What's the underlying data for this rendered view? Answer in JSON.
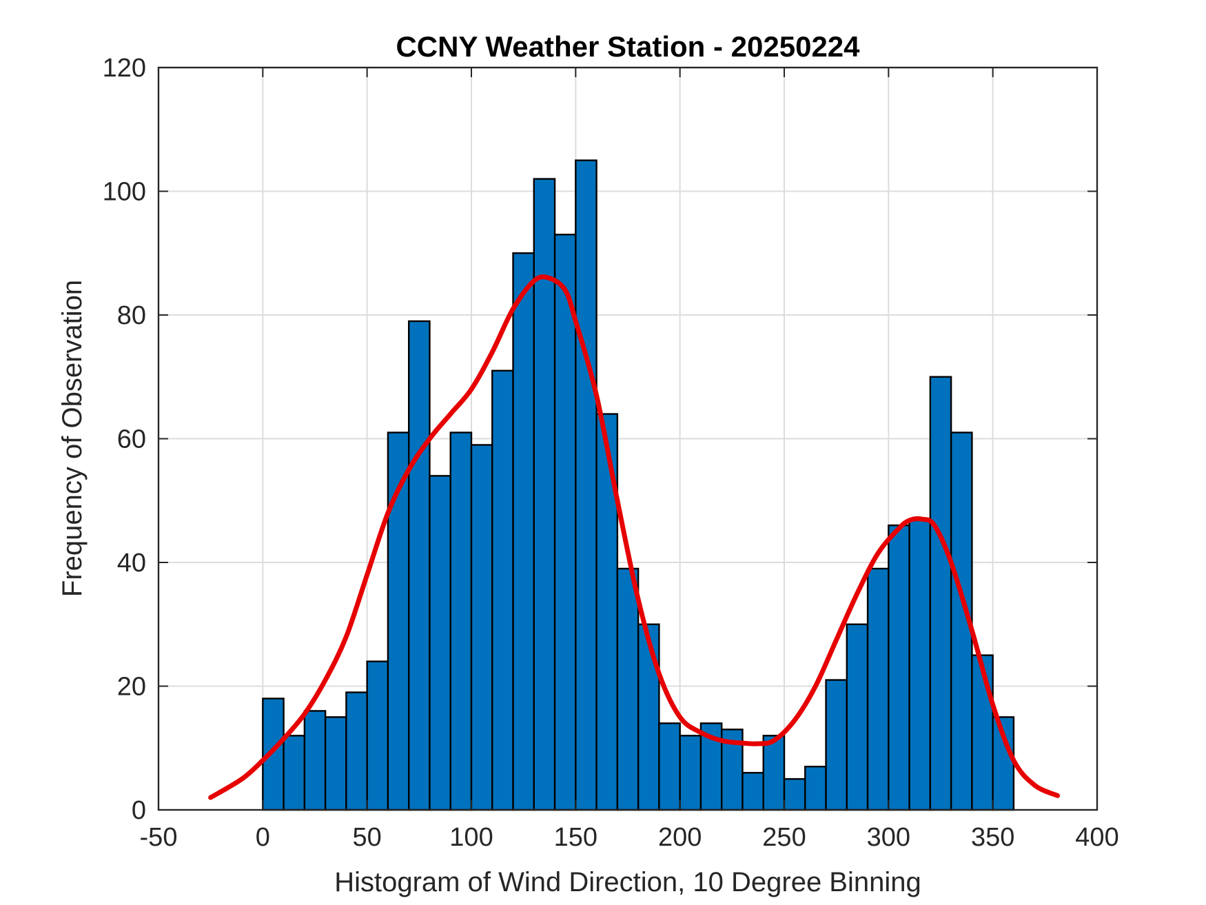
{
  "chart_data": {
    "type": "histogram",
    "title": "CCNY Weather Station - 20250224",
    "xlabel": "Histogram of Wind Direction, 10 Degree Binning",
    "ylabel": "Frequency of Observation",
    "xlim": [
      -50,
      400
    ],
    "ylim": [
      0,
      120
    ],
    "xticks": [
      "-50",
      "0",
      "50",
      "100",
      "150",
      "200",
      "250",
      "300",
      "350",
      "400"
    ],
    "yticks": [
      "0",
      "20",
      "40",
      "60",
      "80",
      "100",
      "120"
    ],
    "grid": true,
    "bin_width": 10,
    "bins": [
      {
        "start": 0,
        "value": 18
      },
      {
        "start": 10,
        "value": 12
      },
      {
        "start": 20,
        "value": 16
      },
      {
        "start": 30,
        "value": 15
      },
      {
        "start": 40,
        "value": 19
      },
      {
        "start": 50,
        "value": 24
      },
      {
        "start": 60,
        "value": 61
      },
      {
        "start": 70,
        "value": 79
      },
      {
        "start": 80,
        "value": 54
      },
      {
        "start": 90,
        "value": 61
      },
      {
        "start": 100,
        "value": 59
      },
      {
        "start": 110,
        "value": 71
      },
      {
        "start": 120,
        "value": 90
      },
      {
        "start": 130,
        "value": 102
      },
      {
        "start": 140,
        "value": 93
      },
      {
        "start": 150,
        "value": 105
      },
      {
        "start": 160,
        "value": 64
      },
      {
        "start": 170,
        "value": 39
      },
      {
        "start": 180,
        "value": 30
      },
      {
        "start": 190,
        "value": 14
      },
      {
        "start": 200,
        "value": 12
      },
      {
        "start": 210,
        "value": 14
      },
      {
        "start": 220,
        "value": 13
      },
      {
        "start": 230,
        "value": 6
      },
      {
        "start": 240,
        "value": 12
      },
      {
        "start": 250,
        "value": 5
      },
      {
        "start": 260,
        "value": 7
      },
      {
        "start": 270,
        "value": 21
      },
      {
        "start": 280,
        "value": 30
      },
      {
        "start": 290,
        "value": 39
      },
      {
        "start": 300,
        "value": 46
      },
      {
        "start": 310,
        "value": 47
      },
      {
        "start": 320,
        "value": 70
      },
      {
        "start": 330,
        "value": 61
      },
      {
        "start": 340,
        "value": 25
      },
      {
        "start": 350,
        "value": 15
      }
    ],
    "fit_curve": {
      "name": "density fit",
      "x": [
        -25,
        -10,
        0,
        10,
        20,
        30,
        40,
        50,
        60,
        70,
        80,
        90,
        100,
        110,
        120,
        130,
        137,
        145,
        150,
        160,
        170,
        180,
        190,
        200,
        210,
        220,
        230,
        237,
        245,
        255,
        265,
        275,
        285,
        295,
        305,
        310,
        316,
        322,
        330,
        340,
        350,
        360,
        370,
        381
      ],
      "y": [
        2,
        5,
        8,
        11.5,
        15.5,
        21,
        28,
        38,
        48,
        55,
        60,
        64,
        68,
        74,
        81,
        85.5,
        86,
        84,
        79,
        67,
        50,
        34,
        22,
        15,
        12.5,
        11.2,
        10.8,
        10.7,
        11.2,
        14.5,
        20,
        27.5,
        35,
        41.5,
        45.5,
        46.8,
        47,
        46,
        40,
        29,
        17,
        8,
        4,
        2.3
      ]
    },
    "colors": {
      "bar": "#0072BD",
      "bar_edge": "#000000",
      "fit": "#E60000",
      "grid": "#DCDCDC",
      "axis": "#262626"
    }
  }
}
